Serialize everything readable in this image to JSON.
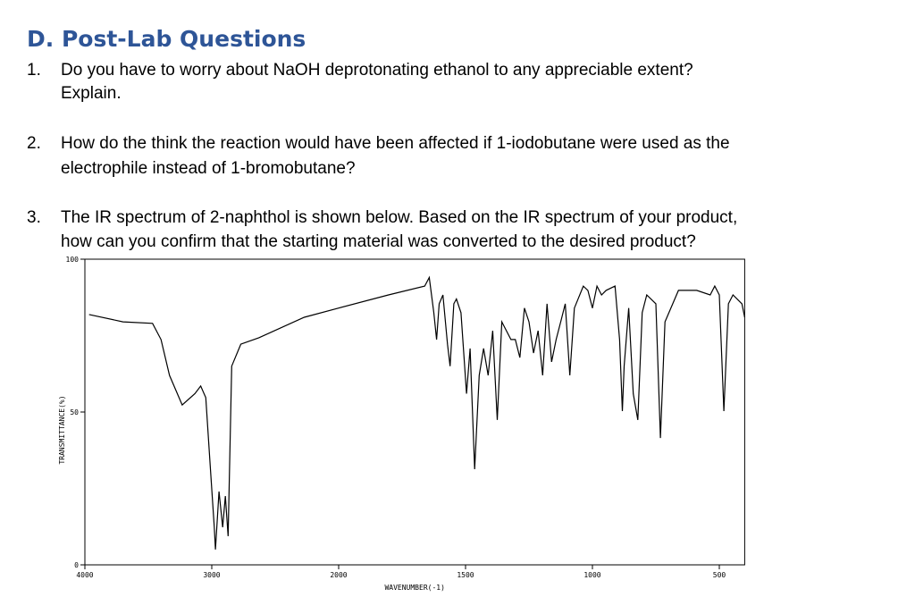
{
  "heading": "D. Post-Lab Questions",
  "questions": [
    {
      "number": "1.",
      "lines": [
        "Do you have to worry about NaOH deprotonating ethanol to any appreciable extent?",
        "Explain."
      ]
    },
    {
      "number": "2.",
      "lines": [
        "How do the think the reaction would have been affected if 1-iodobutane were used as the",
        "electrophile instead of 1-bromobutane?"
      ]
    },
    {
      "number": "3.",
      "lines": [
        "The IR spectrum of 2-naphthol is shown below. Based on the IR spectrum of your product,",
        "how can you confirm that the starting material was converted to the desired product?"
      ]
    }
  ],
  "chart_data": {
    "type": "line",
    "x_label": "WAVENUMBER(-1)",
    "y_label": "TRANSMITTANCE(%)",
    "xlim": [
      4000,
      400
    ],
    "xticks": [
      4000,
      3000,
      2000,
      1500,
      1000,
      500
    ],
    "ylim": [
      0,
      100
    ],
    "yticks": [
      0,
      50,
      100
    ],
    "color": "#000000",
    "x": [
      3967,
      3700,
      3467,
      3400,
      3333,
      3233,
      3133,
      3087,
      3047,
      3013,
      2980,
      2971,
      2943,
      2914,
      2893,
      2871,
      2843,
      2771,
      2629,
      2271,
      2000,
      1804,
      1661,
      1643,
      1625,
      1614,
      1604,
      1589,
      1571,
      1561,
      1546,
      1536,
      1518,
      1496,
      1482,
      1464,
      1446,
      1429,
      1411,
      1393,
      1375,
      1357,
      1321,
      1304,
      1286,
      1268,
      1250,
      1232,
      1214,
      1196,
      1179,
      1161,
      1143,
      1125,
      1107,
      1089,
      1071,
      1036,
      1018,
      1000,
      982,
      964,
      946,
      911,
      893,
      882,
      875,
      857,
      839,
      821,
      804,
      786,
      750,
      732,
      714,
      661,
      589,
      536,
      518,
      500,
      482,
      464,
      446,
      411,
      400
    ],
    "values": [
      81.9,
      79.5,
      79,
      73.7,
      62,
      52.3,
      56,
      58.5,
      54.7,
      32.7,
      12.3,
      5,
      24,
      12.3,
      22.5,
      9.4,
      65,
      72.2,
      74.3,
      81,
      84,
      88.3,
      91.2,
      94,
      82.5,
      73.7,
      85.4,
      88.3,
      72.2,
      65,
      85.4,
      87,
      82.5,
      56,
      70.8,
      31.3,
      62,
      70.8,
      62,
      76.6,
      47.4,
      79.5,
      73.7,
      73.7,
      67.8,
      84,
      79.5,
      69.3,
      76.6,
      62,
      85.4,
      66.4,
      73.7,
      79.5,
      85.4,
      62,
      84,
      91.2,
      89.8,
      84,
      91.2,
      88.3,
      89.8,
      91.2,
      73.7,
      50.3,
      65,
      84,
      56,
      47.4,
      82.5,
      88.3,
      85.4,
      41.5,
      79.5,
      89.8,
      89.8,
      88.3,
      91.2,
      88.3,
      50.3,
      85.4,
      88.3,
      85.4,
      81
    ]
  }
}
